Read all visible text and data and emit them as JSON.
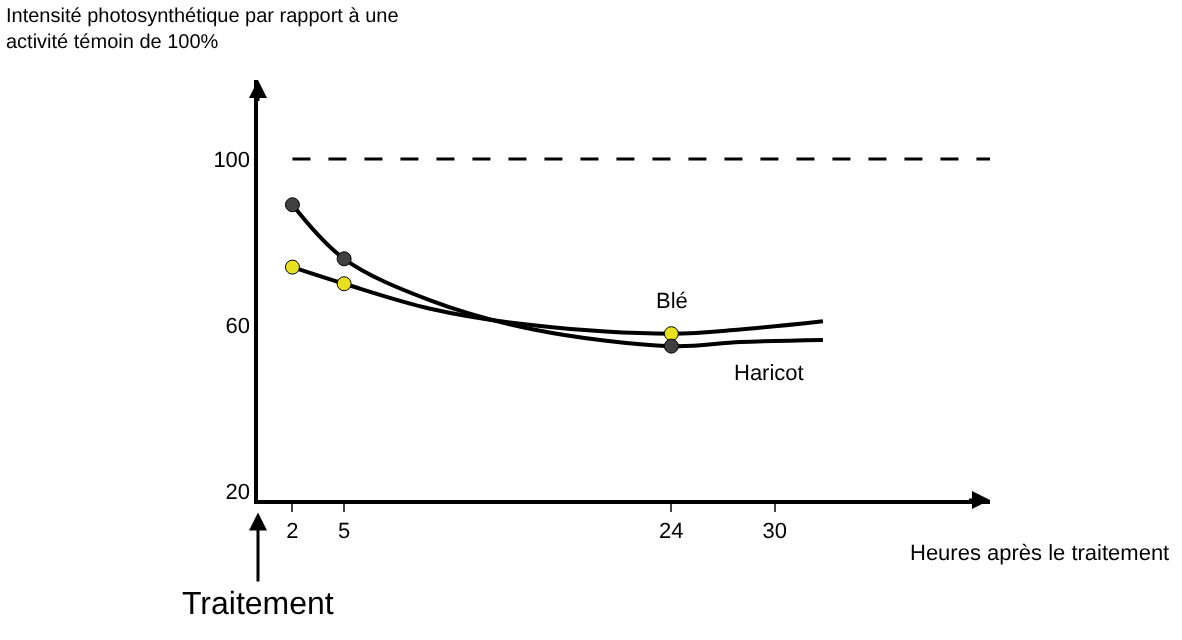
{
  "chart_data": {
    "type": "line",
    "ylabel": "Intensité photosynthétique par rapport à une activité témoin de 100%",
    "xlabel": "Heures après le traitement",
    "xlim": [
      0,
      42.5
    ],
    "ylim": [
      18,
      119
    ],
    "xticks": [
      2,
      5,
      24,
      30
    ],
    "yticks": [
      20,
      60,
      100
    ],
    "grid": false,
    "legend": false,
    "series": [
      {
        "type": "line",
        "name": "Blé",
        "color": "#000000",
        "x": [
          2,
          5,
          10,
          16,
          24,
          28,
          32.8
        ],
        "values": [
          74,
          70,
          64,
          60,
          58,
          59,
          61
        ],
        "marker": "none"
      },
      {
        "type": "line",
        "name": "Haricot",
        "color": "#000000",
        "x": [
          2,
          5,
          10,
          16,
          24,
          28,
          32.8
        ],
        "values": [
          89,
          76,
          66,
          59,
          55,
          56,
          56.5
        ],
        "marker": "none"
      },
      {
        "type": "scatter",
        "color": "#e8e020",
        "x": [
          2,
          5,
          24
        ],
        "values": [
          74,
          70,
          58
        ],
        "marker": "circle"
      },
      {
        "type": "scatter",
        "color": "#404040",
        "x": [
          2,
          5,
          24
        ],
        "values": [
          89,
          76,
          55
        ],
        "marker": "circle"
      }
    ],
    "ref_lines": [
      {
        "axis": "y",
        "value": 100,
        "line_style": "dashed",
        "color": "#000000"
      }
    ],
    "annotations": [
      "Traitement"
    ]
  }
}
